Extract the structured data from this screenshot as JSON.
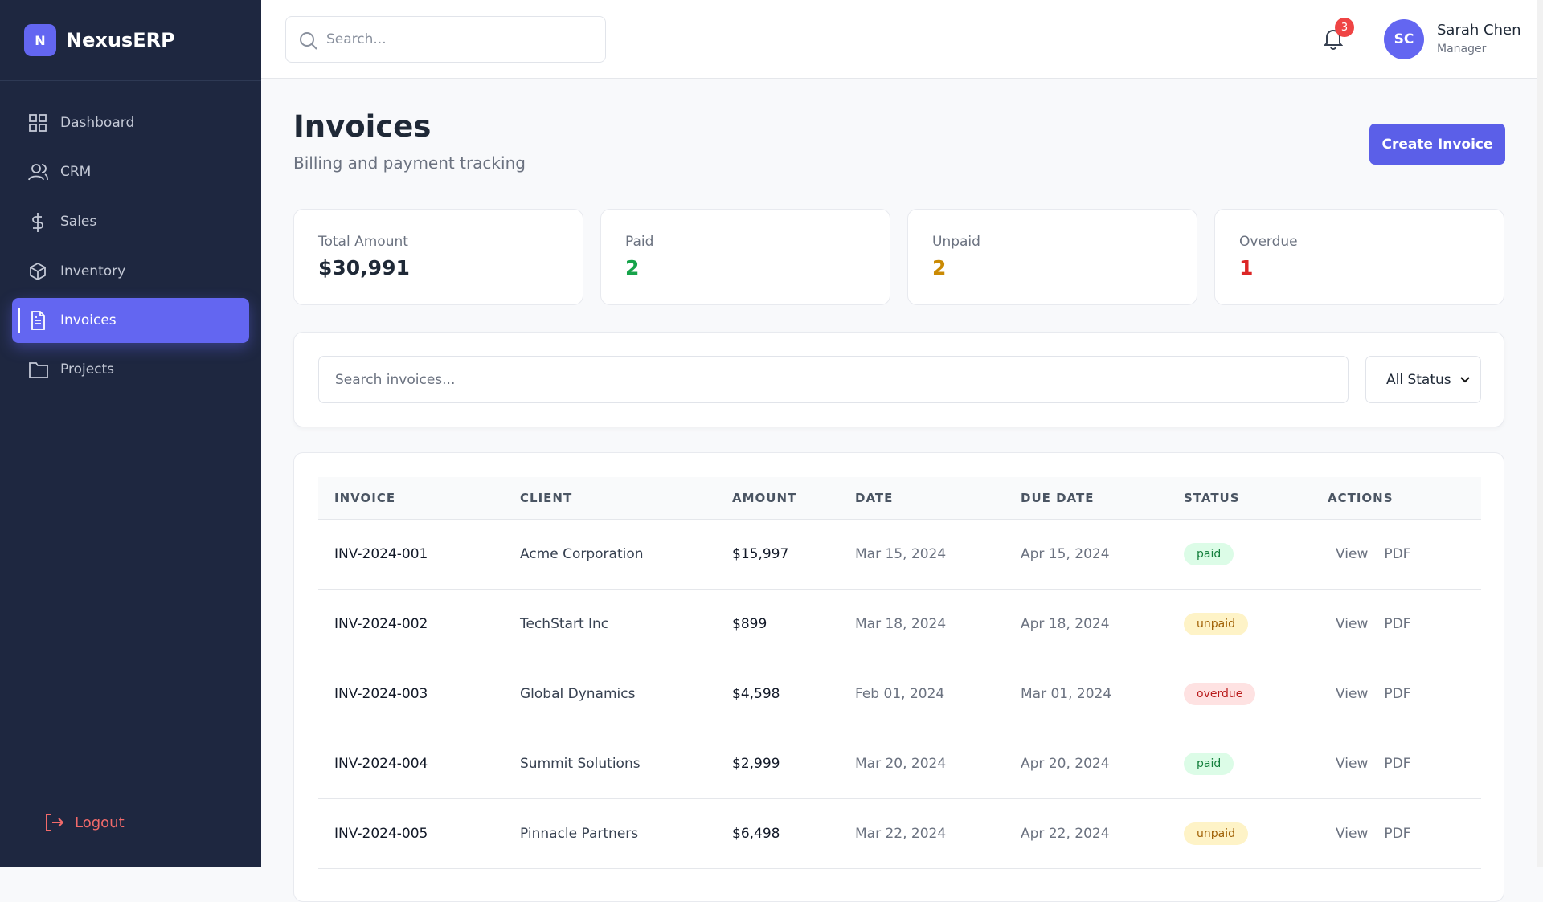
{
  "sidebar": {
    "brand_icon": "N",
    "brand": "NexusERP",
    "nav": [
      "Dashboard",
      "CRM",
      "Sales",
      "Inventory",
      "Invoices",
      "Projects"
    ],
    "logout": "Logout"
  },
  "header": {
    "search_placeholder": "Search...",
    "notifications": "3",
    "user": {
      "initials": "SC",
      "name": "Sarah Chen",
      "role": "Manager"
    }
  },
  "page": {
    "title": "Invoices",
    "subtitle": "Billing and payment tracking",
    "create_button": "Create Invoice"
  },
  "stats": [
    {
      "label": "Total Amount",
      "value": "$30,991"
    },
    {
      "label": "Paid",
      "value": "2"
    },
    {
      "label": "Unpaid",
      "value": "2"
    },
    {
      "label": "Overdue",
      "value": "1"
    }
  ],
  "filters": {
    "search_placeholder": "Search invoices...",
    "status": "All Status"
  },
  "table": {
    "columns": [
      "INVOICE",
      "CLIENT",
      "AMOUNT",
      "DATE",
      "DUE DATE",
      "STATUS",
      "ACTIONS"
    ],
    "rows": [
      [
        "INV-2024-001",
        "Acme Corporation",
        "$15,997",
        "Mar 15, 2024",
        "Apr 15, 2024",
        "paid",
        "View",
        "PDF"
      ],
      [
        "INV-2024-002",
        "TechStart Inc",
        "$899",
        "Mar 18, 2024",
        "Apr 18, 2024",
        "unpaid",
        "View",
        "PDF"
      ],
      [
        "INV-2024-003",
        "Global Dynamics",
        "$4,598",
        "Feb 01, 2024",
        "Mar 01, 2024",
        "overdue",
        "View",
        "PDF"
      ],
      [
        "INV-2024-004",
        "Summit Solutions",
        "$2,999",
        "Mar 20, 2024",
        "Apr 20, 2024",
        "paid",
        "View",
        "PDF"
      ],
      [
        "INV-2024-005",
        "Pinnacle Partners",
        "$6,498",
        "Mar 22, 2024",
        "Apr 22, 2024",
        "unpaid",
        "View",
        "PDF"
      ]
    ]
  }
}
